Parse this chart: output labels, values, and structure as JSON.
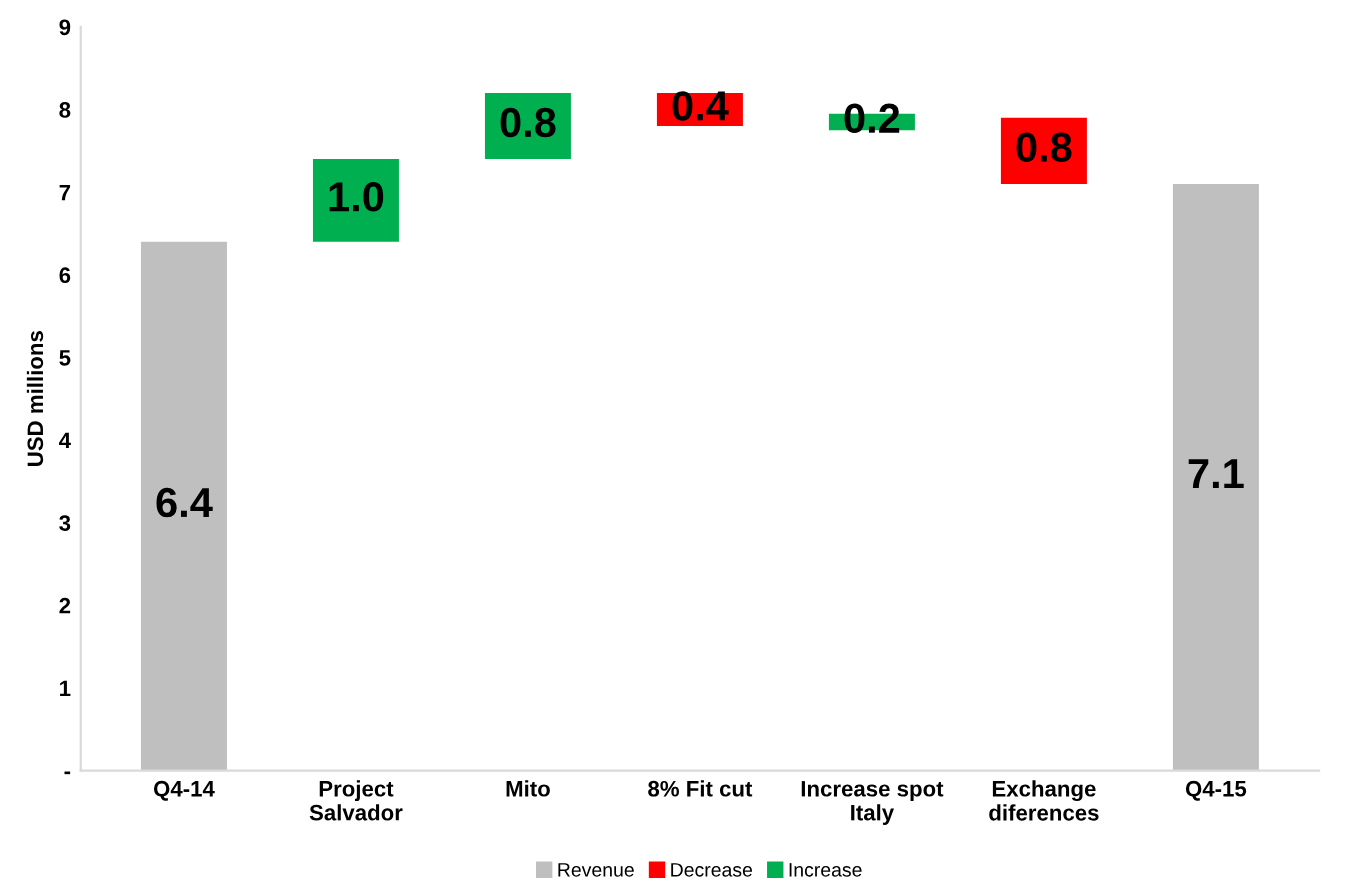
{
  "chart_data": {
    "type": "bar",
    "ylabel": "USD millions",
    "categories": [
      "Q4-14",
      "Project\nSalvador",
      "Mito",
      "8% Fit cut",
      "Increase spot\nItaly",
      "Exchange\ndiferences",
      "Q4-15"
    ],
    "series": [
      {
        "name": "Revenue",
        "color": "#bfbfbf",
        "values": [
          6.4,
          null,
          null,
          null,
          null,
          null,
          7.1
        ],
        "base": [
          0,
          null,
          null,
          null,
          null,
          null,
          0
        ],
        "value_labels": [
          "6.4",
          null,
          null,
          null,
          null,
          null,
          "7.1"
        ]
      },
      {
        "name": "Decrease",
        "color": "#ff0000",
        "values": [
          null,
          null,
          null,
          0.4,
          null,
          0.8,
          null
        ],
        "base": [
          null,
          null,
          null,
          7.8,
          null,
          7.1,
          null
        ],
        "value_labels": [
          null,
          null,
          null,
          "0.4",
          null,
          "0.8",
          null
        ]
      },
      {
        "name": "Increase",
        "color": "#00b050",
        "values": [
          null,
          1.0,
          0.8,
          null,
          0.2,
          null,
          null
        ],
        "base": [
          null,
          6.4,
          7.4,
          null,
          7.75,
          null,
          null
        ],
        "value_labels": [
          null,
          "1.0",
          "0.8",
          null,
          "0.2",
          null,
          null
        ]
      }
    ],
    "ylim": [
      0,
      9
    ],
    "yticks": [
      {
        "value": 0,
        "label": "-"
      },
      1,
      2,
      3,
      4,
      5,
      6,
      7,
      8,
      9
    ],
    "grid": false,
    "legend": "bottom"
  }
}
